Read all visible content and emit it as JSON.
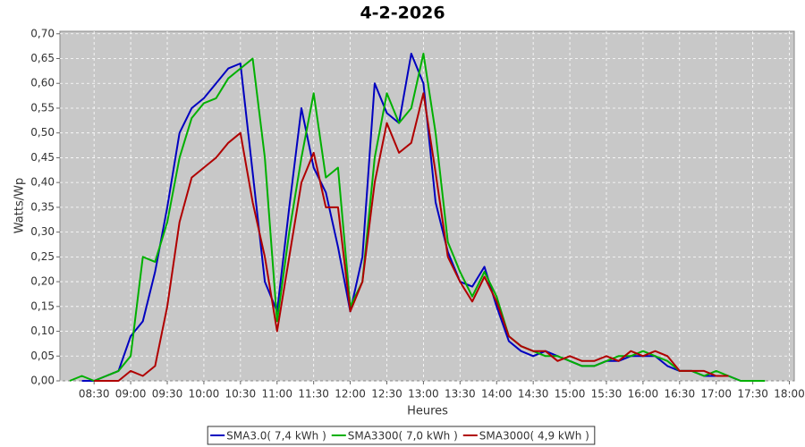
{
  "chart_data": {
    "type": "line",
    "title": "4-2-2026",
    "x_label": "Heures",
    "y_label": "Watts/Wp",
    "x": [
      "08:10",
      "08:20",
      "08:30",
      "08:40",
      "08:50",
      "09:00",
      "09:10",
      "09:20",
      "09:30",
      "09:40",
      "09:50",
      "10:00",
      "10:10",
      "10:20",
      "10:30",
      "10:40",
      "10:50",
      "11:00",
      "11:10",
      "11:20",
      "11:30",
      "11:40",
      "11:50",
      "12:00",
      "12:10",
      "12:20",
      "12:30",
      "12:40",
      "12:50",
      "13:00",
      "13:10",
      "13:20",
      "13:30",
      "13:40",
      "13:50",
      "14:00",
      "14:10",
      "14:20",
      "14:30",
      "14:40",
      "14:50",
      "15:00",
      "15:10",
      "15:20",
      "15:30",
      "15:40",
      "15:50",
      "16:00",
      "16:10",
      "16:20",
      "16:30",
      "16:40",
      "16:50",
      "17:00",
      "17:10",
      "17:20",
      "17:30",
      "17:40"
    ],
    "series": [
      {
        "name": "SMA3.0( 7,4 kWh )",
        "color": "#0000c0",
        "values": [
          null,
          0,
          0,
          0.01,
          0.02,
          0.09,
          0.12,
          0.22,
          0.35,
          0.5,
          0.55,
          0.57,
          0.6,
          0.63,
          0.64,
          0.42,
          0.2,
          0.14,
          0.35,
          0.55,
          0.43,
          0.38,
          0.27,
          0.14,
          0.25,
          0.6,
          0.54,
          0.52,
          0.66,
          0.6,
          0.36,
          0.26,
          0.2,
          0.19,
          0.23,
          0.15,
          0.08,
          0.06,
          0.05,
          0.06,
          0.05,
          0.04,
          0.03,
          0.03,
          0.04,
          0.04,
          0.05,
          0.05,
          0.05,
          0.03,
          0.02,
          0.02,
          0.01,
          0.01,
          0.01,
          0,
          null,
          null
        ]
      },
      {
        "name": "SMA3300( 7,0 kWh )",
        "color": "#00b000",
        "values": [
          0,
          0.01,
          0,
          0.01,
          0.02,
          0.05,
          0.25,
          0.24,
          0.32,
          0.45,
          0.53,
          0.56,
          0.57,
          0.61,
          0.63,
          0.65,
          0.45,
          0.12,
          0.3,
          0.45,
          0.58,
          0.41,
          0.43,
          0.15,
          0.2,
          0.45,
          0.58,
          0.52,
          0.55,
          0.66,
          0.5,
          0.28,
          0.22,
          0.17,
          0.22,
          0.17,
          0.09,
          0.07,
          0.06,
          0.05,
          0.05,
          0.04,
          0.03,
          0.03,
          0.04,
          0.05,
          0.05,
          0.06,
          0.05,
          0.04,
          0.02,
          0.02,
          0.01,
          0.02,
          0.01,
          0,
          0,
          0
        ]
      },
      {
        "name": "SMA3000( 4,9 kWh )",
        "color": "#b00000",
        "values": [
          null,
          null,
          0,
          0,
          0,
          0.02,
          0.01,
          0.03,
          0.15,
          0.32,
          0.41,
          0.43,
          0.45,
          0.48,
          0.5,
          0.36,
          0.25,
          0.1,
          0.25,
          0.4,
          0.46,
          0.35,
          0.35,
          0.14,
          0.2,
          0.4,
          0.52,
          0.46,
          0.48,
          0.58,
          0.42,
          0.25,
          0.2,
          0.16,
          0.21,
          0.16,
          0.09,
          0.07,
          0.06,
          0.06,
          0.04,
          0.05,
          0.04,
          0.04,
          0.05,
          0.04,
          0.06,
          0.05,
          0.06,
          0.05,
          0.02,
          0.02,
          0.02,
          0.01,
          0.01,
          null,
          null,
          null
        ]
      }
    ],
    "xlim": [
      "08:02",
      "18:04"
    ],
    "xticks": [
      "08:30",
      "09:00",
      "09:30",
      "10:00",
      "10:30",
      "11:00",
      "11:30",
      "12:00",
      "12:30",
      "13:00",
      "13:30",
      "14:00",
      "14:30",
      "15:00",
      "15:30",
      "16:00",
      "16:30",
      "17:00",
      "17:30",
      "18:00"
    ],
    "ylim": [
      0,
      0.705
    ],
    "yticks": [
      {
        "value": 0,
        "label": "0,00"
      },
      {
        "value": 0.05,
        "label": "0,05"
      },
      {
        "value": 0.1,
        "label": "0,10"
      },
      {
        "value": 0.15,
        "label": "0,15"
      },
      {
        "value": 0.2,
        "label": "0,20"
      },
      {
        "value": 0.25,
        "label": "0,25"
      },
      {
        "value": 0.3,
        "label": "0,30"
      },
      {
        "value": 0.35,
        "label": "0,35"
      },
      {
        "value": 0.4,
        "label": "0,40"
      },
      {
        "value": 0.45,
        "label": "0,45"
      },
      {
        "value": 0.5,
        "label": "0,50"
      },
      {
        "value": 0.55,
        "label": "0,55"
      },
      {
        "value": 0.6,
        "label": "0,60"
      },
      {
        "value": 0.65,
        "label": "0,65"
      },
      {
        "value": 0.7,
        "label": "0,70"
      }
    ],
    "grid": true
  }
}
